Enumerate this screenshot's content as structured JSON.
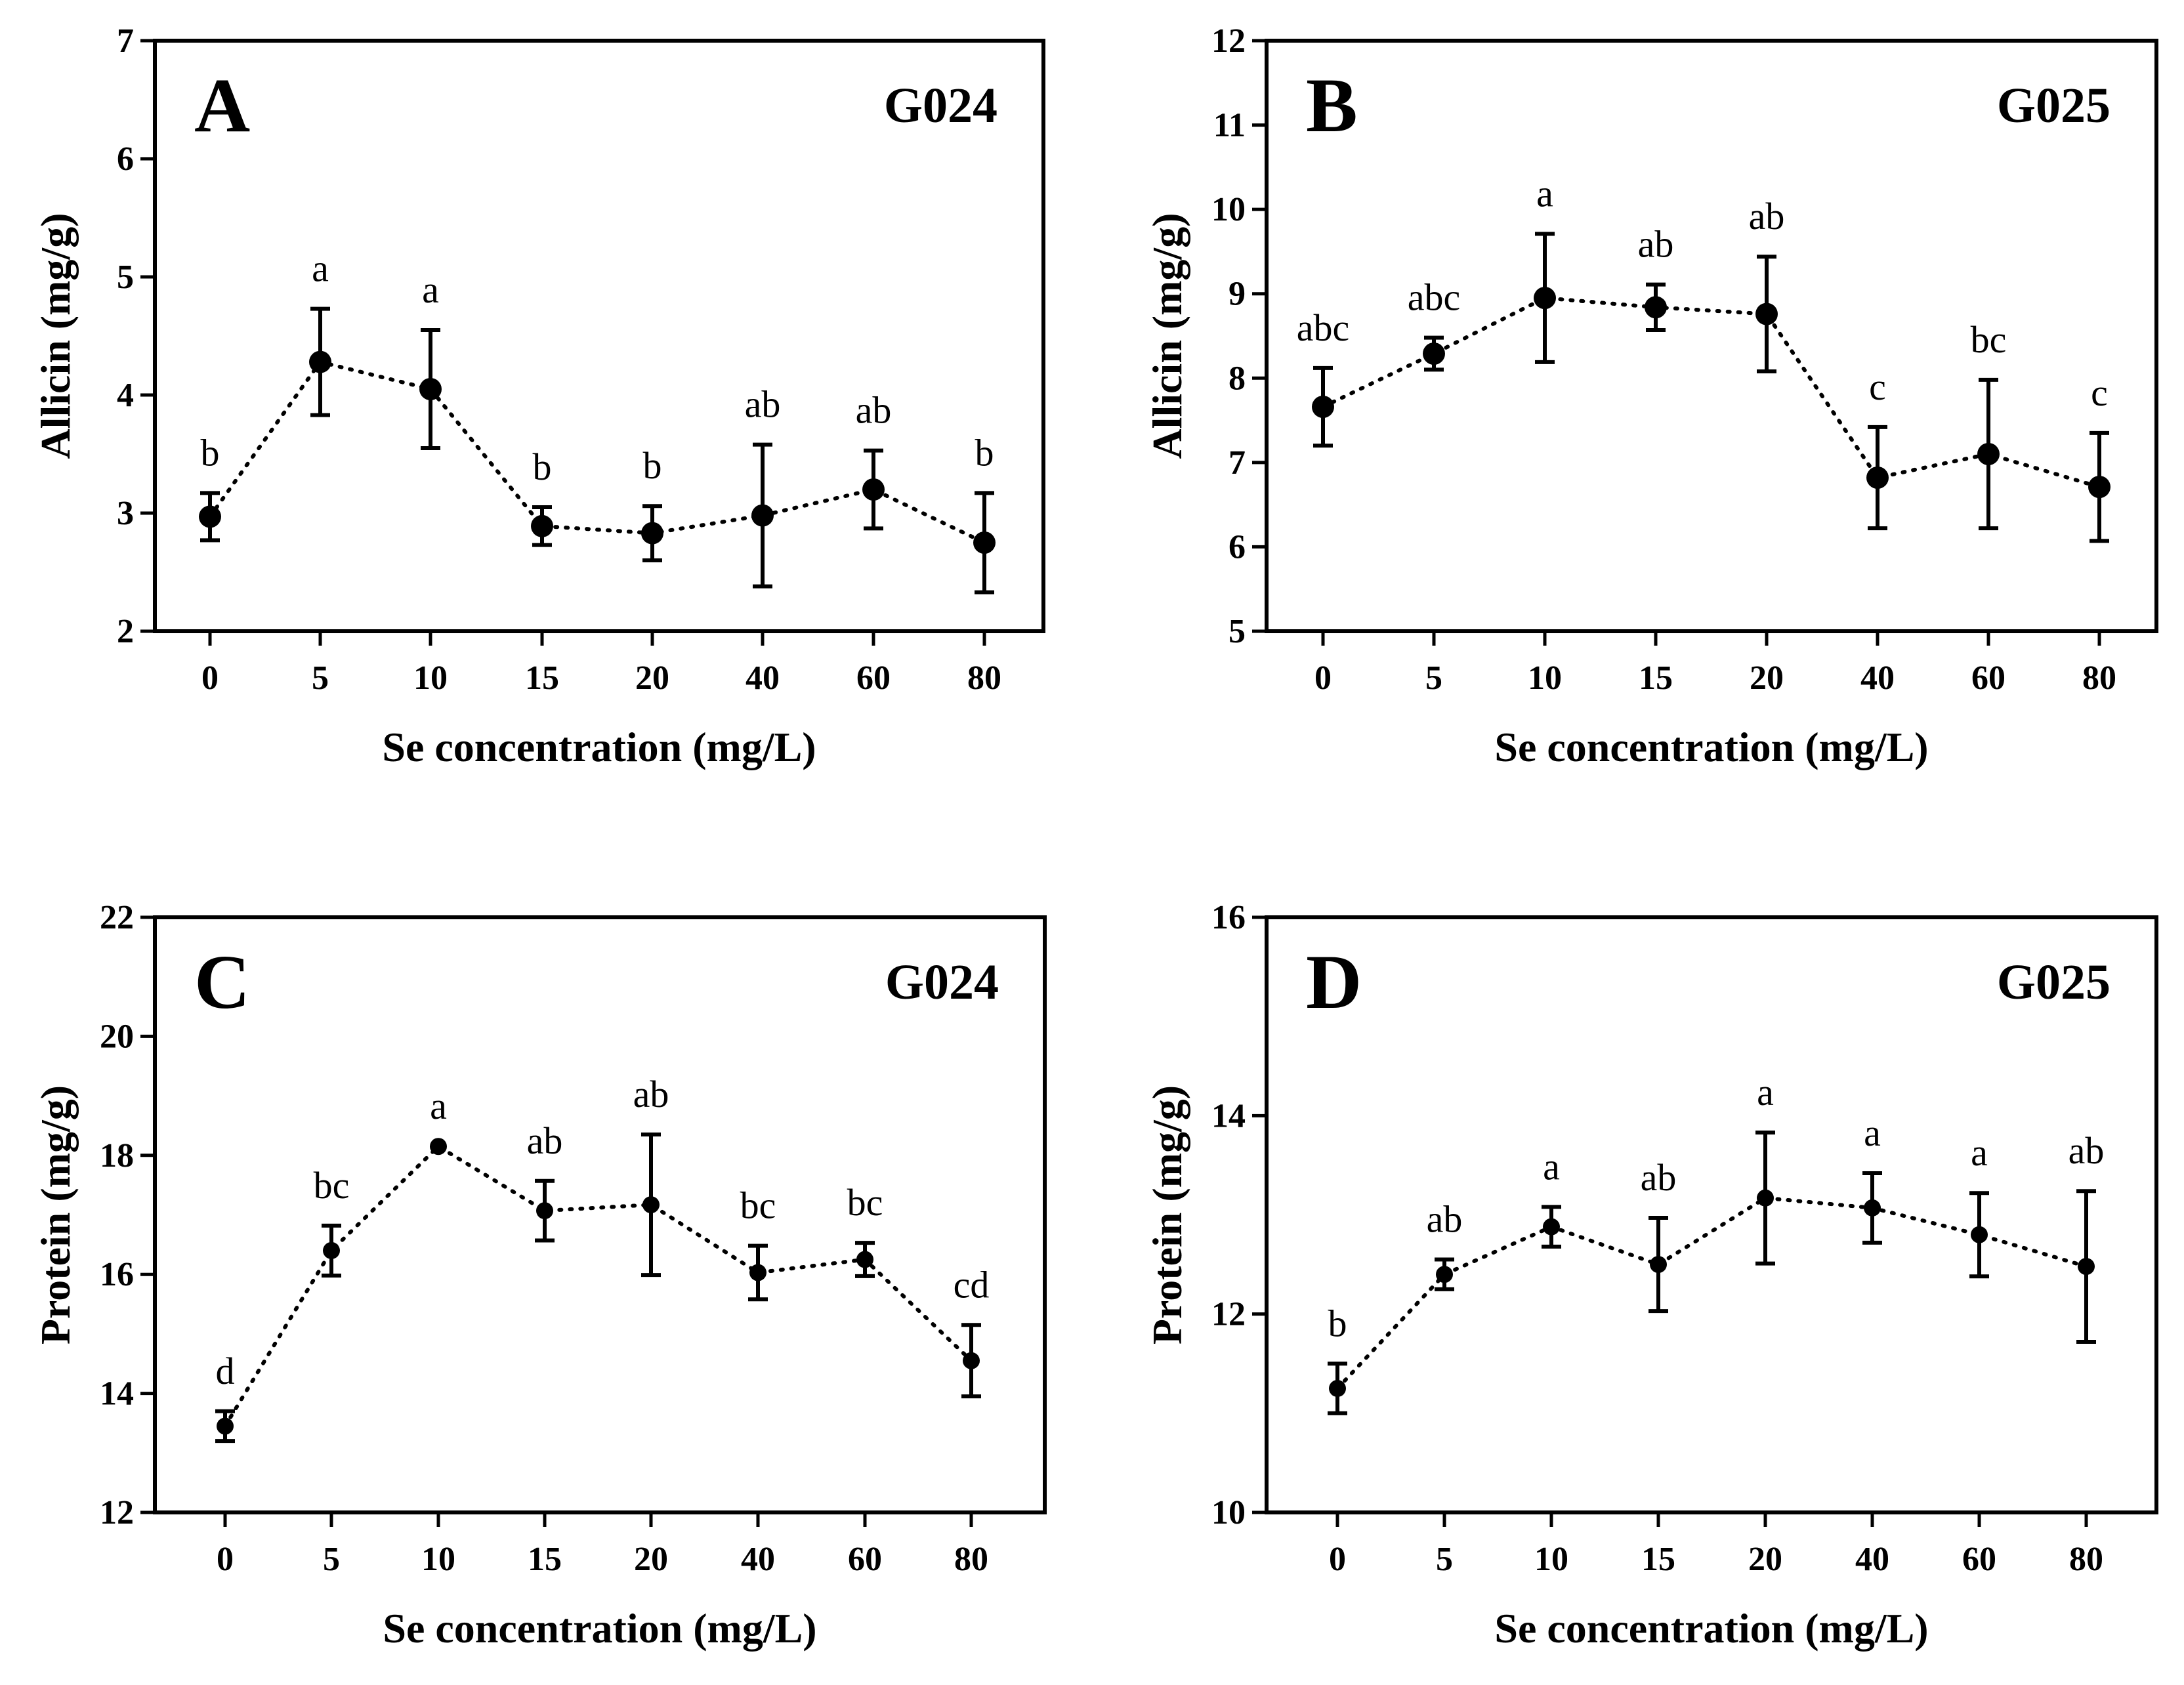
{
  "chart_data": [
    {
      "id": "A",
      "type": "line",
      "panel_label": "A",
      "cultivar": "G024",
      "xlabel": "Se concentration  (mg/L)",
      "ylabel": "Allicin  (mg/g)",
      "categories": [
        "0",
        "5",
        "10",
        "15",
        "20",
        "40",
        "60",
        "80"
      ],
      "values": [
        2.97,
        4.28,
        4.05,
        2.89,
        2.83,
        2.98,
        3.2,
        2.75
      ],
      "errors": [
        0.2,
        0.45,
        0.5,
        0.16,
        0.23,
        0.6,
        0.33,
        0.42
      ],
      "letters": [
        "b",
        "a",
        "a",
        "b",
        "b",
        "ab",
        "ab",
        "b"
      ],
      "ylim": [
        2,
        7
      ],
      "yticks": [
        2,
        3,
        4,
        5,
        6,
        7
      ],
      "marker_size": "large"
    },
    {
      "id": "B",
      "type": "line",
      "panel_label": "B",
      "cultivar": "G025",
      "xlabel": "Se concentration  (mg/L)",
      "ylabel": "Allicin  (mg/g)",
      "categories": [
        "0",
        "5",
        "10",
        "15",
        "20",
        "40",
        "60",
        "80"
      ],
      "values": [
        7.66,
        8.29,
        8.95,
        8.84,
        8.76,
        6.82,
        7.1,
        6.71
      ],
      "errors": [
        0.46,
        0.19,
        0.76,
        0.27,
        0.68,
        0.6,
        0.88,
        0.64
      ],
      "letters": [
        "abc",
        "abc",
        "a",
        "ab",
        "ab",
        "c",
        "bc",
        "c"
      ],
      "ylim": [
        5,
        12
      ],
      "yticks": [
        5,
        6,
        7,
        8,
        9,
        10,
        11,
        12
      ],
      "marker_size": "large"
    },
    {
      "id": "C",
      "type": "line",
      "panel_label": "C",
      "cultivar": "G024",
      "xlabel": "Se concentration  (mg/L)",
      "ylabel": "Protein  (mg/g)",
      "categories": [
        "0",
        "5",
        "10",
        "15",
        "20",
        "40",
        "60",
        "80"
      ],
      "values": [
        13.45,
        16.4,
        18.15,
        17.07,
        17.17,
        16.03,
        16.25,
        14.55
      ],
      "errors": [
        0.25,
        0.42,
        0.0,
        0.5,
        1.18,
        0.45,
        0.28,
        0.6
      ],
      "letters": [
        "d",
        "bc",
        "a",
        "ab",
        "ab",
        "bc",
        "bc",
        "cd"
      ],
      "ylim": [
        12,
        22
      ],
      "yticks": [
        12,
        14,
        16,
        18,
        20,
        22
      ],
      "marker_size": "small"
    },
    {
      "id": "D",
      "type": "line",
      "panel_label": "D",
      "cultivar": "G025",
      "xlabel": "Se concentration  (mg/L)",
      "ylabel": "Protein  (mg/g)",
      "categories": [
        "0",
        "5",
        "10",
        "15",
        "20",
        "40",
        "60",
        "80"
      ],
      "values": [
        11.25,
        12.4,
        12.88,
        12.5,
        13.17,
        13.07,
        12.8,
        12.48
      ],
      "errors": [
        0.25,
        0.15,
        0.2,
        0.47,
        0.66,
        0.35,
        0.42,
        0.76
      ],
      "letters": [
        "b",
        "ab",
        "a",
        "ab",
        "a",
        "a",
        "a",
        "ab"
      ],
      "ylim": [
        10,
        16
      ],
      "yticks": [
        10,
        12,
        14,
        16
      ],
      "marker_size": "small"
    }
  ]
}
